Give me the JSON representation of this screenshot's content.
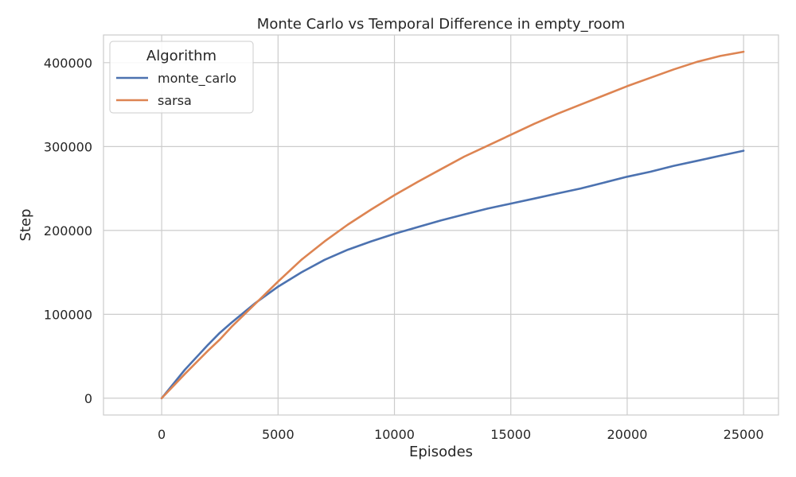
{
  "chart_data": {
    "type": "line",
    "title": "Monte Carlo vs Temporal Difference in empty_room",
    "xlabel": "Episodes",
    "ylabel": "Step",
    "xlim": [
      -2500,
      26500
    ],
    "ylim": [
      -20000,
      433000
    ],
    "xticks": [
      0,
      5000,
      10000,
      15000,
      20000,
      25000
    ],
    "yticks": [
      0,
      100000,
      200000,
      300000,
      400000
    ],
    "grid": true,
    "legend": {
      "title": "Algorithm",
      "placement": "top-left"
    },
    "x": [
      0,
      1000,
      2000,
      2500,
      3000,
      4000,
      5000,
      6000,
      7000,
      8000,
      9000,
      10000,
      11000,
      12000,
      13000,
      14000,
      15000,
      16000,
      17000,
      18000,
      19000,
      20000,
      21000,
      22000,
      23000,
      24000,
      25000
    ],
    "series": [
      {
        "name": "monte_carlo",
        "color": "#4c72b0",
        "values": [
          0,
          34000,
          64000,
          78000,
          90000,
          113000,
          133000,
          150000,
          165000,
          177000,
          187000,
          196000,
          204000,
          212000,
          219000,
          226000,
          232000,
          238000,
          244000,
          250000,
          257000,
          264000,
          270000,
          277000,
          283000,
          289000,
          295000
        ]
      },
      {
        "name": "sarsa",
        "color": "#dd8452",
        "values": [
          0,
          29000,
          57000,
          70000,
          85000,
          112000,
          139000,
          165000,
          187000,
          207000,
          225000,
          242000,
          258000,
          273000,
          288000,
          301000,
          314000,
          327000,
          339000,
          350000,
          361000,
          372000,
          382000,
          392000,
          401000,
          408000,
          413000
        ]
      }
    ]
  }
}
